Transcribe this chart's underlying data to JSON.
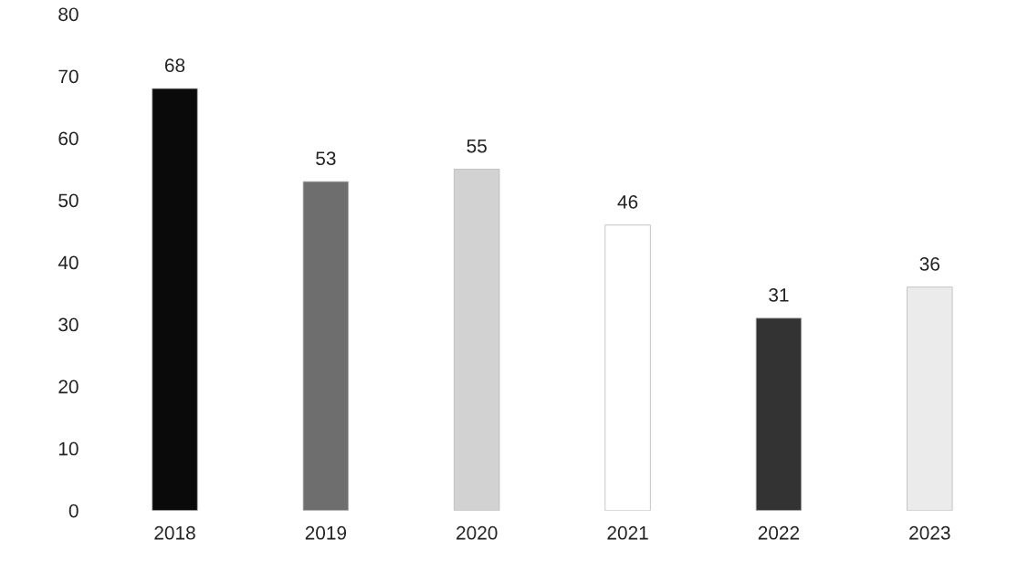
{
  "chart_data": {
    "type": "bar",
    "categories": [
      "2018",
      "2019",
      "2020",
      "2021",
      "2022",
      "2023"
    ],
    "values": [
      68,
      53,
      55,
      46,
      31,
      36
    ],
    "colors": [
      "#0a0a0a",
      "#6e6e6e",
      "#d2d2d2",
      "#ffffff",
      "#333333",
      "#ebebeb"
    ],
    "ylim": [
      0,
      80
    ],
    "yticks": [
      0,
      10,
      20,
      30,
      40,
      50,
      60,
      70,
      80
    ],
    "data_labels": true,
    "grid": false,
    "legend": false
  }
}
